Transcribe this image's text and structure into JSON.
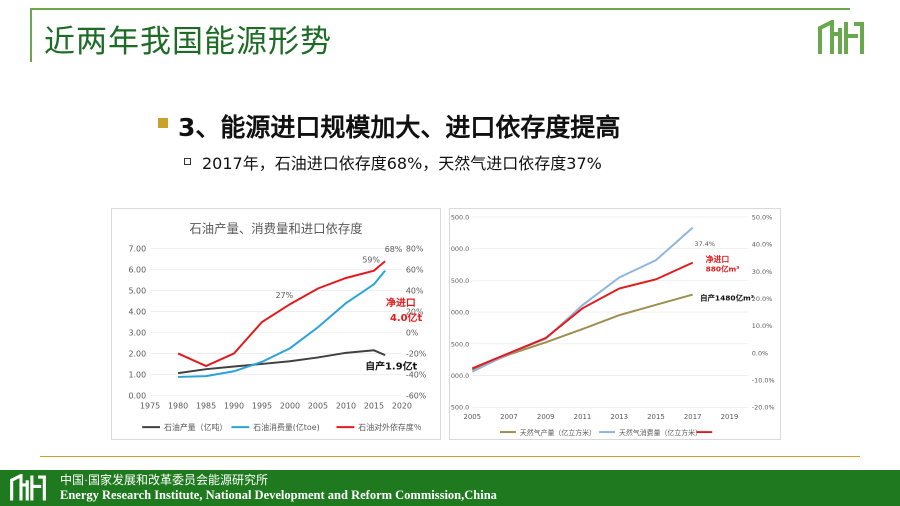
{
  "header": {
    "title": "近两年我国能源形势"
  },
  "body": {
    "heading": "3、能源进口规模加大、进口依存度提高",
    "subpoint": "2017年，石油进口依存度68%，天然气进口依存度37%"
  },
  "footer": {
    "cn": "中国·国家发展和改革委员会能源研究所",
    "en": "Energy Research Institute, National Development and Reform Commission,China"
  },
  "colors": {
    "brand_green": "#1f7a1f",
    "accent_gold": "#c9a227",
    "title_green": "#1e6b25"
  },
  "chart_data": [
    {
      "type": "line",
      "title": "石油产量、消费量和进口依存度",
      "xlim": [
        1975,
        2020
      ],
      "ylim": [
        0,
        7
      ],
      "y2lim": [
        -60,
        80
      ],
      "x_ticks": [
        "1975",
        "1980",
        "1985",
        "1990",
        "1995",
        "2000",
        "2005",
        "2010",
        "2015",
        "2020"
      ],
      "y_ticks": [
        "0.00",
        "1.00",
        "2.00",
        "3.00",
        "4.00",
        "5.00",
        "6.00",
        "7.00"
      ],
      "y2_ticks": [
        "-60%",
        "-40%",
        "-20%",
        "0%",
        "20%",
        "40%",
        "60%",
        "80%"
      ],
      "series": [
        {
          "name": "石油产量（亿吨）",
          "color": "#404040",
          "axis": "left",
          "x": [
            1980,
            1985,
            1990,
            1995,
            2000,
            2005,
            2010,
            2015,
            2017
          ],
          "values": [
            1.06,
            1.25,
            1.38,
            1.5,
            1.63,
            1.81,
            2.03,
            2.15,
            1.92
          ]
        },
        {
          "name": "石油消费量(亿toe)",
          "color": "#29a3d9",
          "axis": "left",
          "x": [
            1980,
            1985,
            1990,
            1995,
            2000,
            2005,
            2010,
            2015,
            2017
          ],
          "values": [
            0.88,
            0.92,
            1.15,
            1.6,
            2.25,
            3.25,
            4.4,
            5.3,
            5.95
          ]
        },
        {
          "name": "石油对外依存度％",
          "color": "#e31a1c",
          "axis": "right",
          "x": [
            1980,
            1985,
            1990,
            1995,
            2000,
            2005,
            2010,
            2015,
            2017
          ],
          "values": [
            -20,
            -32,
            -20,
            10,
            27,
            42,
            52,
            59,
            68
          ]
        }
      ],
      "annotations": [
        "27%",
        "59%",
        "68%",
        "净进口",
        "4.0亿t",
        "自产1.9亿t"
      ]
    },
    {
      "type": "line",
      "xlim": [
        2005,
        2020
      ],
      "x_ticks": [
        "2005",
        "2007",
        "2009",
        "2011",
        "2013",
        "2015",
        "2017",
        "2019"
      ],
      "y_ticks": [
        "500.0",
        "000.0",
        "500.0",
        "000.0",
        "500.0",
        "000.0",
        "500.0"
      ],
      "y2_ticks": [
        "-20.0%",
        "-10.0%",
        "0.0%",
        "10.0%",
        "20.0%",
        "30.0%",
        "40.0%",
        "50.0%"
      ],
      "series": [
        {
          "name": "天然气产量（亿立方米）",
          "color": "#9c8f4f",
          "x": [
            2005,
            2007,
            2009,
            2011,
            2013,
            2015,
            2017
          ],
          "values": [
            493,
            692,
            853,
            1027,
            1209,
            1346,
            1480
          ]
        },
        {
          "name": "天然气消费量（亿立方米）",
          "color": "#8fb4de",
          "x": [
            2005,
            2007,
            2009,
            2011,
            2013,
            2015,
            2017
          ],
          "values": [
            467,
            705,
            900,
            1341,
            1705,
            1932,
            2360
          ]
        },
        {
          "color": "#e31a1c",
          "x": [
            2005,
            2007,
            2009,
            2011,
            2013,
            2015,
            2017
          ],
          "values": [
            510,
            710,
            910,
            1300,
            1560,
            1680,
            1900
          ]
        }
      ],
      "annotations": [
        "37.4%",
        "净进口",
        "880亿m³",
        "自产1480亿m³"
      ]
    }
  ]
}
